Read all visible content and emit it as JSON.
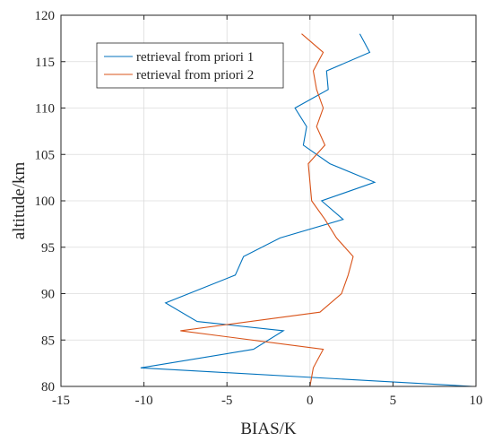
{
  "chart_data": {
    "type": "line",
    "xlabel": "BIAS/K",
    "ylabel": "altitude/km",
    "xlim": [
      -15,
      10
    ],
    "ylim": [
      80,
      120
    ],
    "xticks": [
      -15,
      -10,
      -5,
      0,
      5,
      10
    ],
    "yticks": [
      80,
      85,
      90,
      95,
      100,
      105,
      110,
      115,
      120
    ],
    "grid": true,
    "legend": "top-left",
    "series": [
      {
        "name": "retrieval from priori 1",
        "color": "#0072BD",
        "points": [
          [
            9.8,
            80
          ],
          [
            -10.2,
            82
          ],
          [
            -3.4,
            84
          ],
          [
            -1.6,
            86
          ],
          [
            -6.8,
            87
          ],
          [
            -8.7,
            89
          ],
          [
            -4.5,
            92
          ],
          [
            -4.0,
            94
          ],
          [
            -1.8,
            96
          ],
          [
            2.0,
            98
          ],
          [
            0.7,
            100
          ],
          [
            3.9,
            102
          ],
          [
            1.2,
            104
          ],
          [
            -0.4,
            106
          ],
          [
            -0.2,
            108
          ],
          [
            -0.9,
            110
          ],
          [
            1.1,
            112
          ],
          [
            1.0,
            114
          ],
          [
            3.6,
            116
          ],
          [
            3.0,
            118
          ]
        ]
      },
      {
        "name": "retrieval from priori 2",
        "color": "#D95319",
        "points": [
          [
            0.0,
            80
          ],
          [
            0.2,
            82
          ],
          [
            0.8,
            84
          ],
          [
            -7.8,
            86
          ],
          [
            0.6,
            88
          ],
          [
            1.9,
            90
          ],
          [
            2.3,
            92
          ],
          [
            2.6,
            94
          ],
          [
            1.6,
            96
          ],
          [
            0.9,
            98
          ],
          [
            0.1,
            100
          ],
          [
            0.0,
            102
          ],
          [
            -0.1,
            104
          ],
          [
            0.9,
            106
          ],
          [
            0.4,
            108
          ],
          [
            0.8,
            110
          ],
          [
            0.4,
            112
          ],
          [
            0.2,
            114
          ],
          [
            0.8,
            116
          ],
          [
            -0.5,
            118
          ]
        ]
      }
    ]
  }
}
